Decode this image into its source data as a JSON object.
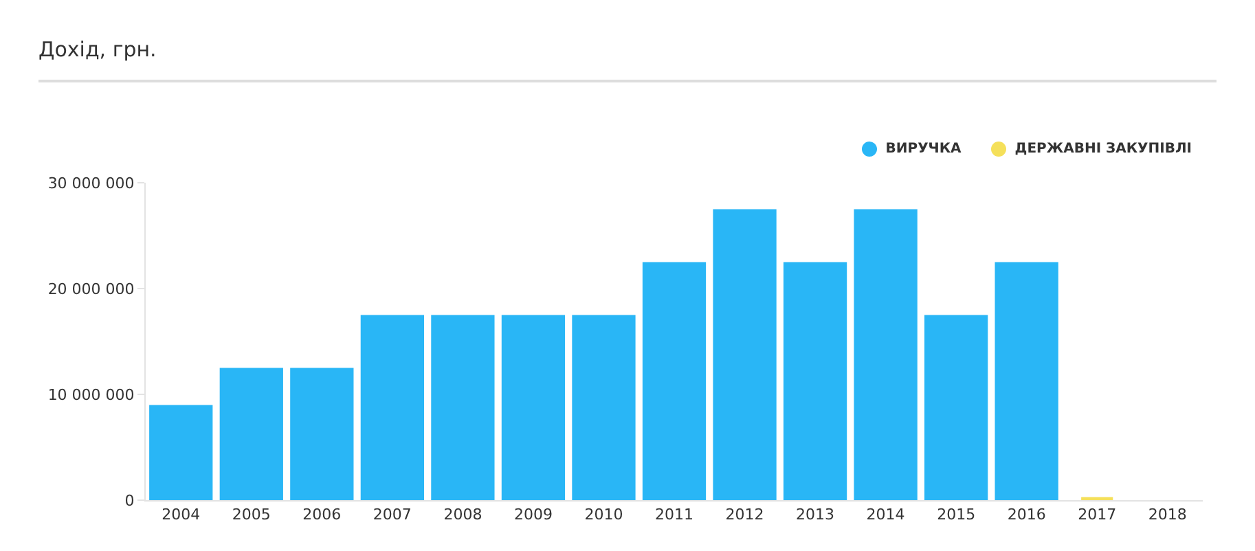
{
  "chart_data": {
    "type": "bar",
    "title": "Дохід, грн.",
    "categories": [
      "2004",
      "2005",
      "2006",
      "2007",
      "2008",
      "2009",
      "2010",
      "2011",
      "2012",
      "2013",
      "2014",
      "2015",
      "2016",
      "2017",
      "2018"
    ],
    "series": [
      {
        "name": "ВИРУЧКА",
        "color": "#29b6f6",
        "values": [
          9000000,
          12500000,
          12500000,
          17500000,
          17500000,
          17500000,
          17500000,
          22500000,
          27500000,
          22500000,
          27500000,
          17500000,
          22500000,
          null,
          null
        ]
      },
      {
        "name": "ДЕРЖАВНІ ЗАКУПІВЛІ",
        "color": "#f5e05a",
        "values": [
          null,
          null,
          null,
          null,
          null,
          null,
          null,
          null,
          null,
          null,
          null,
          null,
          null,
          300000,
          null
        ]
      }
    ],
    "ylim": [
      0,
      30000000
    ],
    "yticks": [
      0,
      {
        "value": 10000000,
        "label": "10 000 000"
      },
      {
        "value": 20000000,
        "label": "20 000 000"
      },
      {
        "value": 30000000,
        "label": "30 000 000"
      }
    ],
    "legend": "top right"
  }
}
